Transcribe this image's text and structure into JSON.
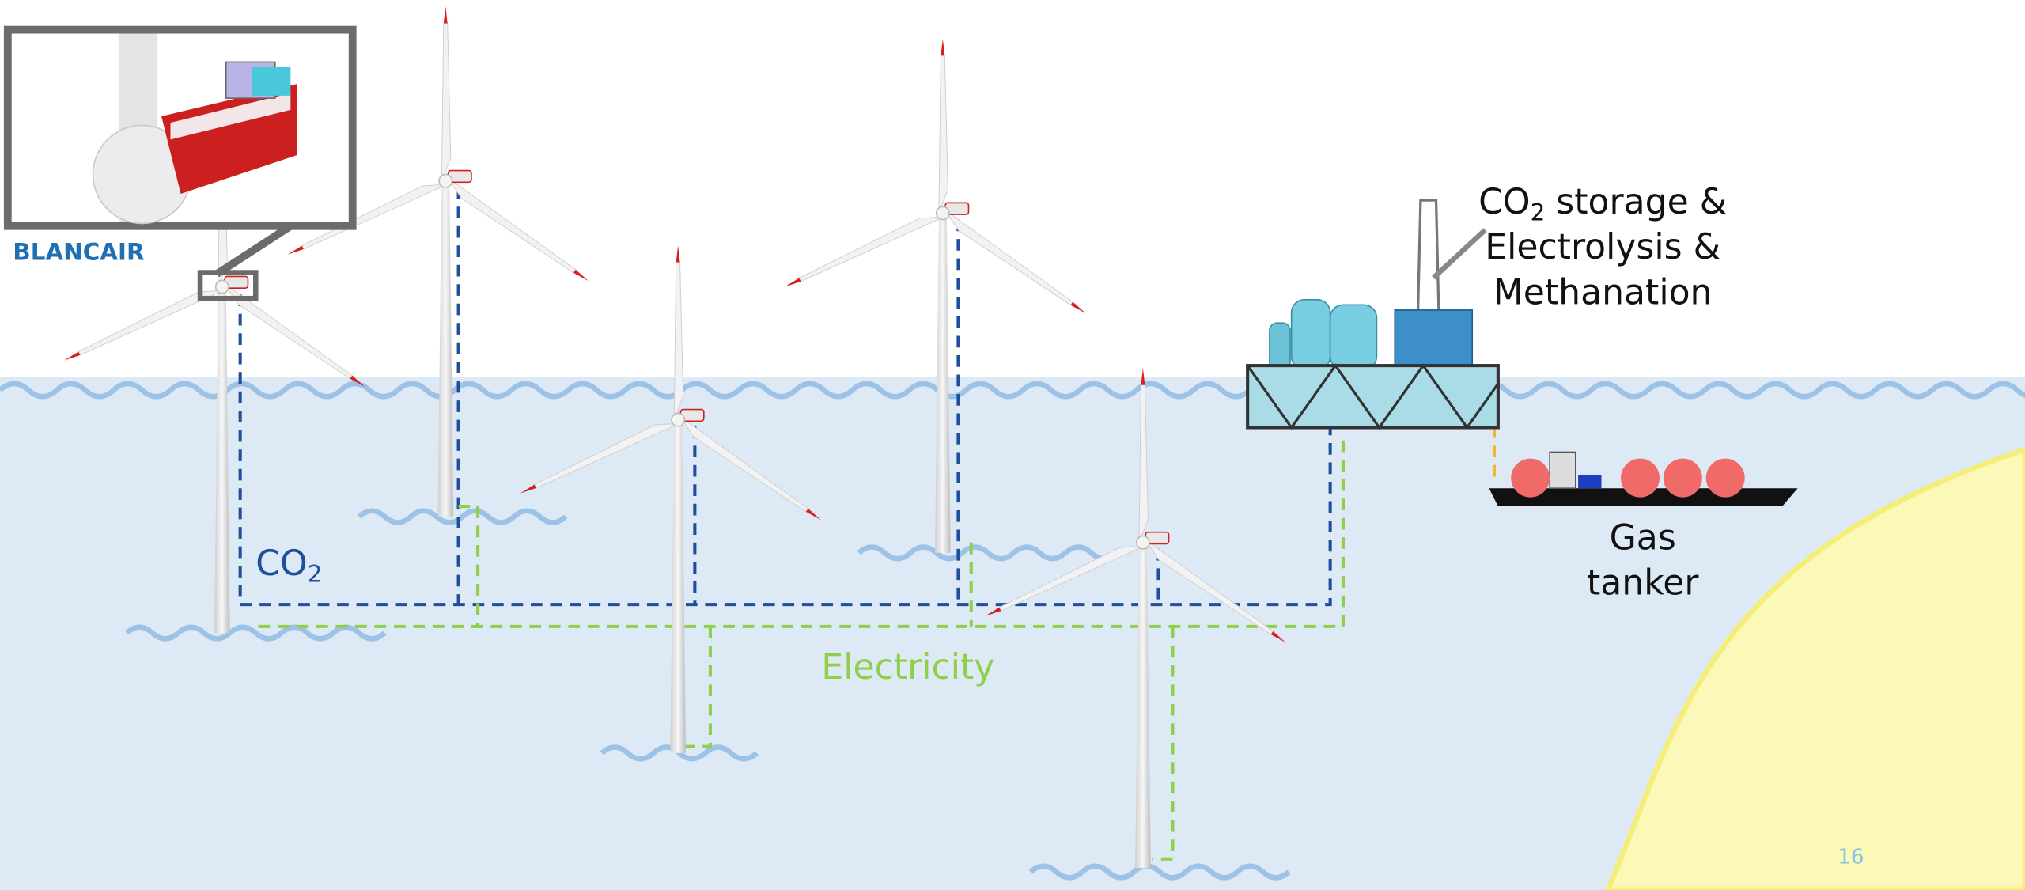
{
  "inset_label": "BLANCAIR",
  "plant_label": {
    "co": "CO",
    "sub": "2",
    "rest": " storage &",
    "line2": "Electrolysis &",
    "line3": "Methanation"
  },
  "tanker_label": [
    "Gas",
    "tanker"
  ],
  "co2_label": {
    "text": "CO",
    "sub": "2"
  },
  "electricity_label": "Electricity",
  "page_number": "16"
}
